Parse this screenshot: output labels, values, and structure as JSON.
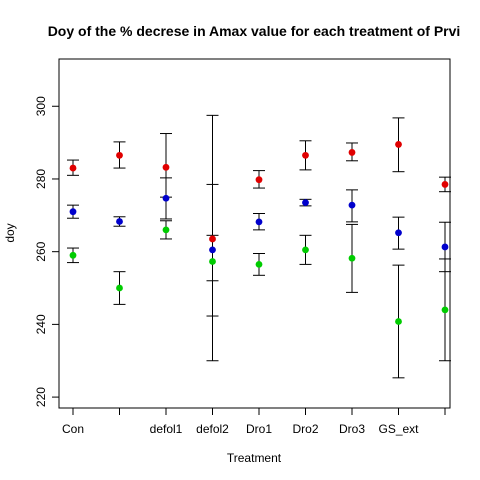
{
  "chart_data": {
    "type": "scatter",
    "title": "Doy of the % decrese in Amax value for each treatment of Prvi",
    "xlabel": "Treatment",
    "ylabel": "doy",
    "ylim": [
      217,
      313
    ],
    "yticks": [
      220,
      240,
      260,
      280,
      300
    ],
    "categories": [
      "Con",
      "",
      "defol1",
      "defol2",
      "Dro1",
      "Dro2",
      "Dro3",
      "GS_ext",
      ""
    ],
    "grid": false,
    "legend": "none",
    "series": [
      {
        "color": "#e00000",
        "values": [
          283,
          286.5,
          283.2,
          263.5,
          279.8,
          286.5,
          287.3,
          289.5,
          278.5
        ],
        "err_low": [
          281,
          283,
          275,
          252,
          277.5,
          282.5,
          285,
          282,
          276.5
        ],
        "err_high": [
          285.2,
          290.2,
          292.5,
          278.5,
          282.3,
          290.5,
          289.9,
          296.8,
          280.5
        ]
      },
      {
        "color": "#0000cc",
        "values": [
          271,
          268.3,
          274.7,
          260.5,
          268.2,
          273.5,
          272.8,
          265.2,
          261.3
        ],
        "err_low": [
          269.2,
          267,
          269,
          242.3,
          266,
          272.6,
          268.2,
          260.7,
          254.5
        ],
        "err_high": [
          272.8,
          269.6,
          280.3,
          297.5,
          270.5,
          274.4,
          277,
          269.5,
          268.1
        ]
      },
      {
        "color": "#00cc00",
        "values": [
          259,
          250,
          266,
          257.3,
          256.5,
          260.5,
          258.2,
          240.8,
          244
        ],
        "err_low": [
          257,
          245.5,
          263.5,
          230,
          253.5,
          256.5,
          248.8,
          225.3,
          230
        ],
        "err_high": [
          261,
          254.5,
          268.5,
          264.5,
          259.5,
          264.5,
          267.5,
          256.3,
          258
        ]
      }
    ]
  }
}
